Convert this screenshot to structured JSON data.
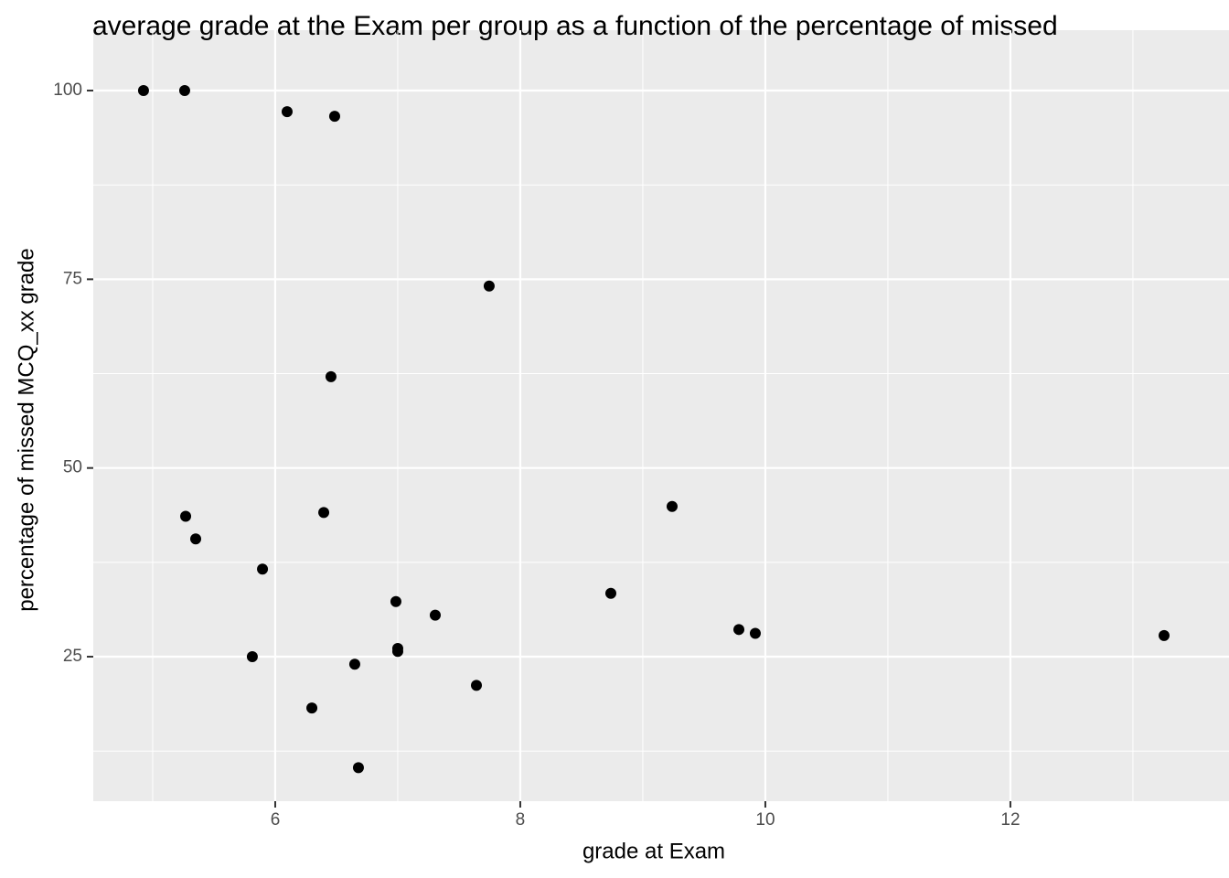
{
  "chart_data": {
    "type": "scatter",
    "title": "average grade at the Exam per group as a function of the percentage of missed",
    "x_label": "grade at Exam",
    "y_label": "percentage of missed MCQ_xx grade",
    "series": [
      {
        "color": "#000000",
        "x": [
          4.925,
          5.261,
          6.097,
          6.485,
          7.746,
          6.455,
          5.269,
          5.351,
          6.396,
          5.896,
          6.985,
          7.306,
          8.739,
          9.239,
          5.813,
          7.0,
          7.0,
          6.649,
          7.642,
          6.299,
          6.679,
          9.784,
          9.918,
          13.254
        ],
        "values": [
          100,
          100,
          97.2,
          96.6,
          74.1,
          62.1,
          43.6,
          40.6,
          44.1,
          36.6,
          32.3,
          30.5,
          33.4,
          44.9,
          25.0,
          26.1,
          25.7,
          24.0,
          21.2,
          18.2,
          10.3,
          28.6,
          28.1,
          27.8
        ]
      }
    ],
    "xlim": [
      4.515,
      13.784
    ],
    "xticks": [
      6,
      8,
      10,
      12
    ],
    "xminor": [
      5,
      7,
      9,
      11,
      13
    ],
    "ylim": [
      5.86,
      108.0
    ],
    "yticks": [
      25,
      50,
      75,
      100
    ],
    "yminor": [
      12.5,
      37.5,
      62.5,
      87.5
    ],
    "grid": true
  }
}
